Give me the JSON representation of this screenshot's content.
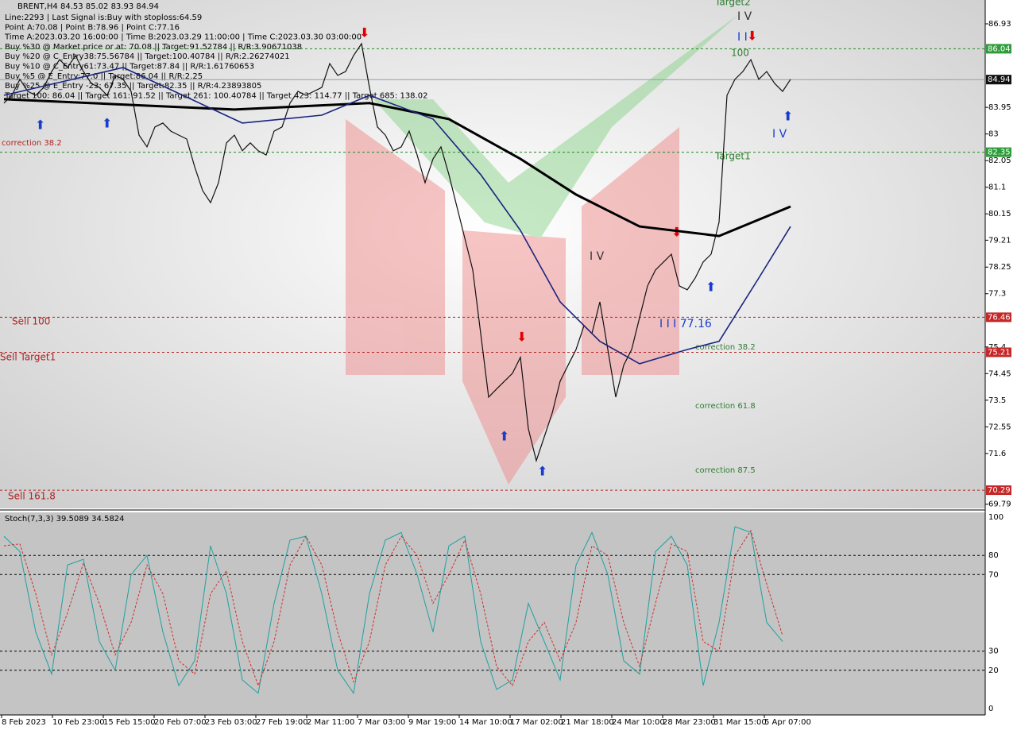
{
  "chart_data": [
    {
      "type": "line",
      "symbol_line": "BRENT,H4  84.53 85.02 83.93 84.94",
      "info_lines": [
        "Line:2293 | Last Signal is:Buy with stoploss:64.59",
        "Point A:70.08 | Point B:78.96 | Point C:77.16",
        "Time A:2023.03.20 16:00:00 | Time B:2023.03.29 11:00:00 | Time C:2023.03.30 03:00:00",
        "Buy %30 @ Market price or at: 70.08 || Target:91.52784 || R/R:3.90671038",
        "Buy %20 @ C_Entry38:75.56784 || Target:100.40784 || R/R:2.26274021",
        "Buy %10 @ C_Entry61:73.47 || Target:87.84 || R/R:1.61760653",
        "Buy %5 @ E_Entry:77.0 || Target:86.04 || R/R:2.25",
        "Buy %25 @ E_Entry -23: 67.35 || Target:82.35 || R/R:4.23893805",
        "Target 100: 86.04 || Target 161: 91.52 || Target 261: 100.40784 || Target 423: 114.77 || Target 685: 138.02"
      ],
      "xlim": [
        -0.5,
        123.5
      ],
      "ylim": [
        69.64,
        87.78
      ],
      "yticks": [
        86.93,
        83.95,
        83.0,
        82.05,
        81.1,
        80.15,
        79.21,
        78.25,
        77.3,
        75.4,
        74.45,
        73.5,
        72.55,
        71.6,
        69.79
      ],
      "xticks": [
        {
          "value": -0.3,
          "label": "8 Feb 2023"
        },
        {
          "value": 6.1,
          "label": "10 Feb 23:00"
        },
        {
          "value": 12.5,
          "label": "15 Feb 15:00"
        },
        {
          "value": 18.9,
          "label": "20 Feb 07:00"
        },
        {
          "value": 25.3,
          "label": "23 Feb 03:00"
        },
        {
          "value": 31.7,
          "label": "27 Feb 19:00"
        },
        {
          "value": 38.1,
          "label": "2 Mar 11:00"
        },
        {
          "value": 44.5,
          "label": "7 Mar 03:00"
        },
        {
          "value": 50.9,
          "label": "9 Mar 19:00"
        },
        {
          "value": 57.3,
          "label": "14 Mar 10:00"
        },
        {
          "value": 63.7,
          "label": "17 Mar 02:00"
        },
        {
          "value": 70.1,
          "label": "21 Mar 18:00"
        },
        {
          "value": 76.5,
          "label": "24 Mar 10:00"
        },
        {
          "value": 82.9,
          "label": "28 Mar 23:00"
        },
        {
          "value": 89.3,
          "label": "31 Mar 15:00"
        },
        {
          "value": 95.7,
          "label": "5 Apr 07:00"
        }
      ],
      "series": [
        {
          "color": "#111111",
          "width": 1.2,
          "values": [
            84.1,
            84.38,
            84.95,
            84.52,
            84.38,
            84.66,
            85.23,
            85.65,
            85.37,
            85.8,
            85.23,
            84.8,
            84.66,
            84.38,
            85.09,
            84.95,
            84.52,
            82.96,
            82.54,
            83.25,
            83.39,
            83.1,
            82.96,
            82.82,
            81.83,
            80.98,
            80.55,
            81.26,
            82.68,
            82.96,
            82.4,
            82.68,
            82.4,
            82.25,
            83.1,
            83.25,
            84.1,
            84.52,
            84.38,
            84.52,
            84.66,
            85.51,
            85.09,
            85.23,
            85.8,
            86.22,
            84.66,
            83.25,
            82.96,
            82.4,
            82.54,
            83.1,
            82.25,
            81.26,
            82.11,
            82.54,
            81.55,
            80.41,
            79.28,
            78.15,
            75.88,
            73.61,
            73.9,
            74.18,
            74.46,
            75.03,
            72.48,
            71.34,
            72.19,
            73.04,
            74.18,
            74.75,
            75.31,
            76.16,
            75.88,
            77.01,
            75.31,
            73.61,
            74.75,
            75.31,
            76.45,
            77.58,
            78.15,
            78.43,
            78.71,
            77.58,
            77.44,
            77.86,
            78.43,
            78.71,
            79.85,
            84.38,
            84.95,
            85.23,
            85.65,
            84.95,
            85.23,
            84.8,
            84.52,
            84.95
          ]
        },
        {
          "color": "#000000",
          "width": 3,
          "x": [
            0,
            29,
            46,
            56,
            65,
            72,
            80,
            90,
            99
          ],
          "values": [
            84.24,
            83.87,
            84.1,
            83.53,
            82.11,
            80.84,
            79.7,
            79.36,
            80.41
          ]
        },
        {
          "color": "#1a237e",
          "width": 1.6,
          "x": [
            0,
            15,
            30,
            40,
            46,
            54,
            60,
            65,
            70,
            75,
            80,
            86,
            90,
            95,
            99
          ],
          "values": [
            84.38,
            85.37,
            83.39,
            83.67,
            84.38,
            83.53,
            81.55,
            79.56,
            77.01,
            75.6,
            74.8,
            75.31,
            75.6,
            77.86,
            79.7
          ]
        }
      ],
      "levels": [
        {
          "value": 86.04,
          "color": "#1e8c1e",
          "box": "#2e9d3a"
        },
        {
          "value": 84.94,
          "color": "#8aa0b8",
          "box": "#111111",
          "solid": true
        },
        {
          "value": 82.35,
          "color": "#1e8c1e",
          "box": "#2e9d3a"
        },
        {
          "value": 76.46,
          "color": "#b22222",
          "box": "#c62828"
        },
        {
          "value": 75.21,
          "color": "#b22222",
          "box": "#c62828"
        },
        {
          "value": 70.29,
          "color": "#b22222",
          "box": "#c62828"
        }
      ],
      "annotations": [
        "correction 38.2",
        "Sell 100",
        "Sell Target1",
        "Sell 161.8",
        "Target2",
        "Target1",
        "100",
        "I V",
        "I I",
        "I V",
        "I V",
        "I I I 77.16",
        "correction 38.2",
        "correction 61.8",
        "correction 87.5"
      ]
    },
    {
      "type": "line",
      "title": "Stoch(7,3,3) 39.5089 34.5824",
      "ylim": [
        0,
        100
      ],
      "yticks": [
        100,
        80,
        70,
        30,
        20,
        0
      ],
      "x": [
        0,
        2,
        4,
        6,
        8,
        10,
        12,
        14,
        16,
        18,
        20,
        22,
        24,
        26,
        28,
        30,
        32,
        34,
        36,
        38,
        40,
        42,
        44,
        46,
        48,
        50,
        52,
        54,
        56,
        58,
        60,
        62,
        64,
        66,
        68,
        70,
        72,
        74,
        76,
        78,
        80,
        82,
        84,
        86,
        88,
        90,
        92,
        94,
        96,
        98
      ],
      "series": [
        {
          "color": "#20a0a0",
          "dashed": false,
          "values": [
            90,
            82,
            40,
            18,
            75,
            78,
            35,
            20,
            70,
            80,
            40,
            12,
            25,
            85,
            60,
            15,
            8,
            55,
            88,
            90,
            60,
            20,
            8,
            60,
            88,
            92,
            70,
            40,
            85,
            90,
            35,
            10,
            15,
            55,
            35,
            15,
            75,
            92,
            70,
            25,
            18,
            82,
            90,
            75,
            12,
            45,
            95,
            92,
            45,
            35
          ]
        },
        {
          "color": "#d32f2f",
          "dashed": true,
          "values": [
            85,
            86,
            60,
            28,
            50,
            76,
            55,
            28,
            45,
            75,
            60,
            25,
            18,
            60,
            72,
            35,
            12,
            35,
            75,
            90,
            75,
            40,
            14,
            35,
            75,
            90,
            80,
            55,
            70,
            88,
            60,
            22,
            12,
            35,
            45,
            25,
            45,
            85,
            80,
            45,
            22,
            55,
            86,
            82,
            35,
            30,
            80,
            93,
            65,
            38
          ]
        }
      ]
    }
  ]
}
